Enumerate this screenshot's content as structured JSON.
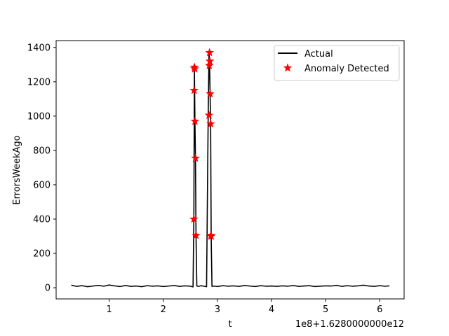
{
  "chart_data": {
    "type": "line",
    "title": "",
    "xlabel": "t",
    "ylabel": "ErrorsWeekAgo",
    "x_offset_label": "1e8+1.6280000000e12",
    "xlim": [
      0.02,
      6.45
    ],
    "ylim": [
      -65,
      1440
    ],
    "x_ticks": [
      1,
      2,
      3,
      4,
      5,
      6
    ],
    "y_ticks": [
      0,
      200,
      400,
      600,
      800,
      1000,
      1200,
      1400
    ],
    "grid": false,
    "legend_position": "top-right",
    "series": [
      {
        "name": "Actual",
        "type": "line",
        "color": "#000000",
        "x": [
          0.3,
          0.4,
          0.5,
          0.6,
          0.7,
          0.8,
          0.9,
          1.0,
          1.1,
          1.2,
          1.3,
          1.4,
          1.5,
          1.6,
          1.7,
          1.8,
          1.9,
          2.0,
          2.1,
          2.2,
          2.3,
          2.4,
          2.5,
          2.55,
          2.565,
          2.575,
          2.585,
          2.595,
          2.605,
          2.62,
          2.65,
          2.7,
          2.75,
          2.8,
          2.83,
          2.845,
          2.855,
          2.865,
          2.875,
          2.885,
          2.9,
          2.95,
          3.0,
          3.1,
          3.2,
          3.3,
          3.4,
          3.5,
          3.6,
          3.7,
          3.8,
          3.9,
          4.0,
          4.1,
          4.2,
          4.3,
          4.4,
          4.5,
          4.6,
          4.7,
          4.8,
          4.9,
          5.0,
          5.1,
          5.2,
          5.3,
          5.4,
          5.5,
          5.6,
          5.7,
          5.8,
          5.9,
          6.0,
          6.1,
          6.18
        ],
        "y": [
          15,
          8,
          12,
          6,
          10,
          14,
          9,
          16,
          11,
          7,
          13,
          8,
          10,
          6,
          12,
          9,
          11,
          7,
          10,
          13,
          8,
          11,
          9,
          5,
          400,
          1285,
          970,
          755,
          305,
          10,
          8,
          12,
          9,
          6,
          1005,
          1370,
          1320,
          1130,
          955,
          300,
          8,
          10,
          7,
          12,
          9,
          11,
          8,
          13,
          10,
          7,
          12,
          9,
          10,
          8,
          11,
          9,
          13,
          8,
          10,
          12,
          7,
          9,
          11,
          10,
          14,
          8,
          12,
          9,
          11,
          15,
          10,
          8,
          12,
          9,
          11
        ]
      },
      {
        "name": "Anomaly Detected",
        "type": "scatter",
        "color": "#ff0000",
        "marker": "star",
        "x": [
          2.565,
          2.575,
          2.57,
          2.58,
          2.585,
          2.595,
          2.605,
          2.845,
          2.855,
          2.85,
          2.86,
          2.865,
          2.875,
          2.885,
          2.88
        ],
        "y": [
          400,
          1285,
          1150,
          1275,
          970,
          755,
          305,
          1005,
          1370,
          1295,
          1320,
          1130,
          955,
          300,
          305
        ]
      }
    ]
  }
}
